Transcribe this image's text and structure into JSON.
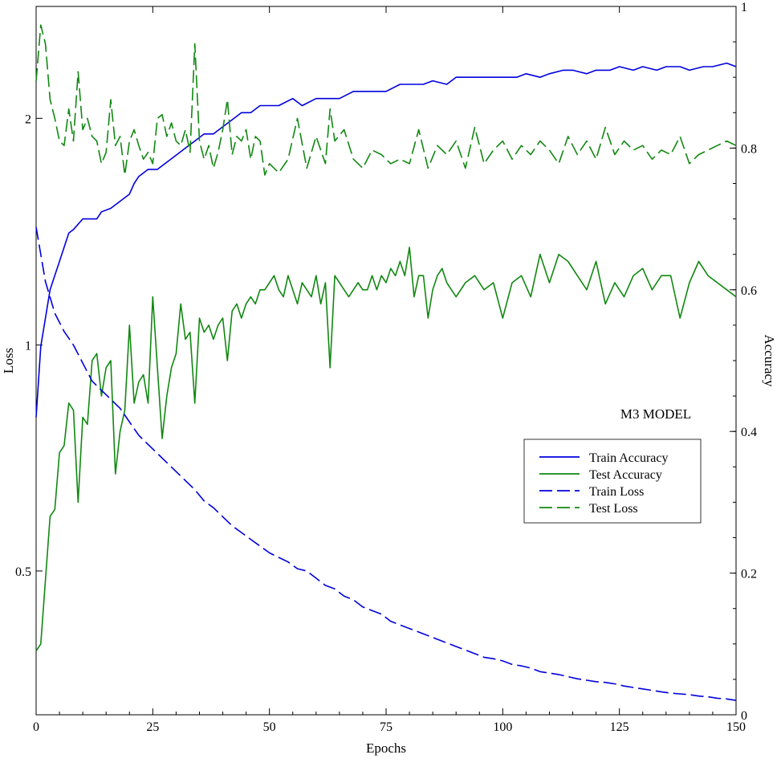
{
  "chart_data": {
    "type": "line",
    "title": "M3 MODEL",
    "xlabel": "Epochs",
    "ylabel_left": "Loss",
    "ylabel_right": "Accuracy",
    "xlim": [
      0,
      150
    ],
    "ylim_left": [
      0.3,
      1.5
    ],
    "ylim_right": [
      0,
      1
    ],
    "x_ticks": [
      0,
      25,
      50,
      75,
      100,
      125,
      150
    ],
    "y_left_ticks": [
      0.5,
      1,
      2
    ],
    "y_right_ticks": [
      0,
      0.2,
      0.4,
      0.6,
      0.8,
      1
    ],
    "legend_position": "center-right",
    "grid": false,
    "axis_mapping": {
      "left_loss_anchors": [
        [
          0.5,
          0.4
        ],
        [
          1.0,
          0.72
        ],
        [
          2.0,
          1.22
        ]
      ],
      "note_left_axis_tick_labels": [
        "0.5",
        "1",
        "2"
      ]
    },
    "series": [
      {
        "name": "Train Accuracy",
        "axis": "right",
        "color": "#0000dd",
        "dash": "solid",
        "x": [
          0,
          1,
          3,
          5,
          7,
          8,
          10,
          13,
          14,
          16,
          17,
          19,
          20,
          21,
          22,
          24,
          25,
          26,
          28,
          30,
          32,
          34,
          36,
          38,
          40,
          42,
          44,
          46,
          48,
          50,
          52,
          55,
          57,
          60,
          62,
          65,
          68,
          70,
          73,
          75,
          78,
          80,
          83,
          85,
          88,
          90,
          93,
          95,
          98,
          100,
          103,
          105,
          108,
          110,
          113,
          115,
          118,
          120,
          123,
          125,
          128,
          130,
          133,
          135,
          138,
          140,
          143,
          145,
          148,
          150
        ],
        "values": [
          0.42,
          0.52,
          0.6,
          0.64,
          0.68,
          0.685,
          0.7,
          0.7,
          0.71,
          0.715,
          0.72,
          0.73,
          0.735,
          0.75,
          0.76,
          0.77,
          0.77,
          0.77,
          0.78,
          0.79,
          0.8,
          0.81,
          0.82,
          0.82,
          0.83,
          0.84,
          0.85,
          0.85,
          0.86,
          0.86,
          0.86,
          0.87,
          0.86,
          0.87,
          0.87,
          0.87,
          0.88,
          0.88,
          0.88,
          0.88,
          0.89,
          0.89,
          0.89,
          0.895,
          0.89,
          0.9,
          0.9,
          0.9,
          0.9,
          0.9,
          0.9,
          0.905,
          0.9,
          0.905,
          0.91,
          0.91,
          0.905,
          0.91,
          0.91,
          0.915,
          0.91,
          0.915,
          0.91,
          0.915,
          0.915,
          0.91,
          0.915,
          0.915,
          0.92,
          0.915
        ]
      },
      {
        "name": "Test Accuracy",
        "axis": "right",
        "color": "#118811",
        "dash": "solid",
        "x": [
          0,
          1,
          3,
          4,
          5,
          6,
          7,
          8,
          9,
          10,
          11,
          12,
          13,
          14,
          15,
          16,
          17,
          18,
          19,
          20,
          21,
          22,
          23,
          24,
          25,
          26,
          27,
          28,
          29,
          30,
          31,
          32,
          33,
          34,
          35,
          36,
          37,
          38,
          39,
          40,
          41,
          42,
          43,
          44,
          45,
          46,
          47,
          48,
          49,
          50,
          51,
          52,
          53,
          54,
          55,
          56,
          57,
          58,
          59,
          60,
          61,
          62,
          63,
          64,
          65,
          66,
          67,
          68,
          69,
          70,
          71,
          72,
          73,
          74,
          75,
          76,
          77,
          78,
          79,
          80,
          81,
          82,
          83,
          84,
          85,
          86,
          87,
          88,
          89,
          90,
          92,
          94,
          96,
          98,
          100,
          102,
          104,
          106,
          108,
          110,
          112,
          114,
          116,
          118,
          120,
          122,
          124,
          126,
          128,
          130,
          132,
          134,
          136,
          138,
          140,
          142,
          144,
          146,
          148,
          150
        ],
        "values": [
          0.09,
          0.1,
          0.28,
          0.29,
          0.37,
          0.38,
          0.44,
          0.43,
          0.3,
          0.42,
          0.41,
          0.5,
          0.51,
          0.45,
          0.49,
          0.5,
          0.34,
          0.4,
          0.43,
          0.55,
          0.44,
          0.47,
          0.48,
          0.44,
          0.59,
          0.49,
          0.39,
          0.45,
          0.49,
          0.51,
          0.58,
          0.53,
          0.54,
          0.44,
          0.56,
          0.54,
          0.55,
          0.53,
          0.55,
          0.56,
          0.5,
          0.57,
          0.58,
          0.56,
          0.58,
          0.59,
          0.58,
          0.6,
          0.6,
          0.61,
          0.62,
          0.6,
          0.59,
          0.62,
          0.6,
          0.58,
          0.61,
          0.6,
          0.59,
          0.62,
          0.58,
          0.61,
          0.49,
          0.62,
          0.61,
          0.6,
          0.59,
          0.6,
          0.61,
          0.6,
          0.6,
          0.62,
          0.6,
          0.62,
          0.61,
          0.63,
          0.62,
          0.64,
          0.62,
          0.66,
          0.59,
          0.62,
          0.62,
          0.56,
          0.6,
          0.62,
          0.63,
          0.61,
          0.6,
          0.59,
          0.61,
          0.62,
          0.6,
          0.61,
          0.56,
          0.61,
          0.62,
          0.59,
          0.65,
          0.61,
          0.65,
          0.64,
          0.62,
          0.6,
          0.64,
          0.58,
          0.61,
          0.59,
          0.62,
          0.63,
          0.6,
          0.62,
          0.62,
          0.56,
          0.61,
          0.64,
          0.62,
          0.61,
          0.6,
          0.59
        ]
      },
      {
        "name": "Train Loss",
        "axis": "left",
        "color": "#0000dd",
        "dash": "long-dash",
        "x": [
          0,
          2,
          4,
          6,
          8,
          10,
          12,
          14,
          16,
          18,
          20,
          22,
          24,
          26,
          28,
          30,
          32,
          34,
          36,
          38,
          40,
          42,
          44,
          46,
          48,
          50,
          52,
          54,
          56,
          58,
          60,
          62,
          64,
          66,
          68,
          70,
          72,
          74,
          76,
          78,
          80,
          82,
          84,
          86,
          88,
          90,
          92,
          94,
          96,
          98,
          100,
          102,
          104,
          106,
          108,
          110,
          112,
          114,
          116,
          118,
          120,
          122,
          124,
          126,
          128,
          130,
          132,
          134,
          136,
          138,
          140,
          142,
          144,
          146,
          148,
          150
        ],
        "values": [
          1.52,
          1.28,
          1.14,
          1.06,
          1.0,
          0.96,
          0.92,
          0.9,
          0.88,
          0.86,
          0.83,
          0.8,
          0.78,
          0.76,
          0.74,
          0.72,
          0.7,
          0.68,
          0.655,
          0.64,
          0.62,
          0.6,
          0.585,
          0.57,
          0.555,
          0.54,
          0.53,
          0.52,
          0.505,
          0.5,
          0.49,
          0.48,
          0.475,
          0.465,
          0.46,
          0.45,
          0.445,
          0.44,
          0.43,
          0.425,
          0.42,
          0.415,
          0.41,
          0.405,
          0.4,
          0.395,
          0.39,
          0.385,
          0.38,
          0.378,
          0.375,
          0.37,
          0.368,
          0.365,
          0.36,
          0.358,
          0.356,
          0.353,
          0.35,
          0.348,
          0.346,
          0.345,
          0.343,
          0.34,
          0.338,
          0.336,
          0.334,
          0.332,
          0.33,
          0.329,
          0.328,
          0.326,
          0.325,
          0.323,
          0.322,
          0.32
        ]
      },
      {
        "name": "Test Loss",
        "axis": "left",
        "color": "#118811",
        "dash": "long-dash",
        "x": [
          0,
          1,
          2,
          3,
          4,
          5,
          6,
          7,
          8,
          9,
          10,
          11,
          12,
          13,
          14,
          15,
          16,
          17,
          18,
          19,
          20,
          21,
          22,
          23,
          24,
          25,
          26,
          27,
          28,
          29,
          30,
          31,
          32,
          33,
          34,
          35,
          36,
          37,
          38,
          39,
          40,
          41,
          42,
          43,
          44,
          45,
          46,
          47,
          48,
          49,
          50,
          52,
          54,
          56,
          58,
          60,
          62,
          63,
          64,
          66,
          68,
          70,
          72,
          74,
          76,
          78,
          80,
          82,
          84,
          86,
          88,
          90,
          92,
          94,
          96,
          98,
          100,
          102,
          104,
          106,
          108,
          110,
          112,
          114,
          116,
          118,
          120,
          122,
          124,
          126,
          128,
          130,
          132,
          134,
          136,
          138,
          140,
          142,
          144,
          146,
          148,
          150
        ],
        "values": [
          2.2,
          2.5,
          2.4,
          2.1,
          2.0,
          1.9,
          1.88,
          2.05,
          1.9,
          2.25,
          1.95,
          2.0,
          1.92,
          1.9,
          1.8,
          1.85,
          2.1,
          1.88,
          1.92,
          1.75,
          1.9,
          1.95,
          1.88,
          1.82,
          1.85,
          1.8,
          2.0,
          2.02,
          1.92,
          1.98,
          1.9,
          1.88,
          1.95,
          1.85,
          2.4,
          1.9,
          1.82,
          1.88,
          1.78,
          1.85,
          1.95,
          2.1,
          1.84,
          1.92,
          1.9,
          1.95,
          1.82,
          1.92,
          1.9,
          1.75,
          1.8,
          1.76,
          1.82,
          2.0,
          1.78,
          1.92,
          1.8,
          2.05,
          1.9,
          1.95,
          1.82,
          1.78,
          1.86,
          1.84,
          1.8,
          1.82,
          1.8,
          1.95,
          1.78,
          1.88,
          1.84,
          1.9,
          1.78,
          1.96,
          1.8,
          1.86,
          1.9,
          1.82,
          1.88,
          1.84,
          1.9,
          1.86,
          1.8,
          1.92,
          1.84,
          1.9,
          1.82,
          1.96,
          1.84,
          1.9,
          1.86,
          1.88,
          1.82,
          1.86,
          1.84,
          1.92,
          1.8,
          1.84,
          1.86,
          1.88,
          1.9,
          1.88
        ]
      }
    ],
    "legend": [
      "Train Accuracy",
      "Test Accuracy",
      "Train Loss",
      "Test Loss"
    ]
  }
}
